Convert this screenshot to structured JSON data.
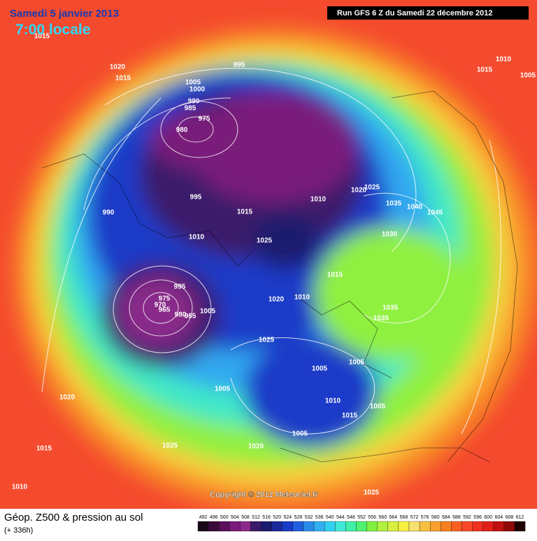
{
  "header": {
    "date": "Samedi 5 janvier 2013",
    "time": "7:00 locale",
    "run": "Run GFS 6 Z du Samedi 22 décembre 2012"
  },
  "copyright": "Copyright © 2012 Meteociel.fr",
  "legend": {
    "title": "Géop. Z500 & pression au sol",
    "lead": "(+ 336h)",
    "scale": [
      492,
      496,
      500,
      504,
      508,
      512,
      516,
      520,
      524,
      528,
      532,
      536,
      540,
      544,
      548,
      552,
      556,
      560,
      564,
      568,
      572,
      576,
      580,
      584,
      588,
      592,
      596,
      600,
      604,
      608,
      612
    ],
    "colors": [
      "#1a081a",
      "#3a0a3a",
      "#5a0f5a",
      "#7a1a7a",
      "#8a2a8a",
      "#3a1a6a",
      "#1a1a6e",
      "#1a2a9a",
      "#1a3ac8",
      "#2060e0",
      "#2a8ae8",
      "#30b0f0",
      "#30d0f0",
      "#40e8d8",
      "#40f0a8",
      "#50f070",
      "#80f040",
      "#b0f040",
      "#d8f040",
      "#f8f040",
      "#f8e070",
      "#f8c040",
      "#f8a030",
      "#f88020",
      "#f86020",
      "#f84828",
      "#f03020",
      "#e02018",
      "#c01010",
      "#900808",
      "#200000"
    ]
  },
  "isobar_labels": [
    1015,
    1020,
    1015,
    995,
    1005,
    1000,
    990,
    985,
    975,
    980,
    1010,
    1015,
    1005,
    995,
    990,
    1015,
    1010,
    1020,
    1025,
    1035,
    1040,
    1045,
    1030,
    1025,
    1010,
    995,
    975,
    970,
    965,
    980,
    985,
    1005,
    1020,
    1010,
    1015,
    1035,
    1035,
    1025,
    1005,
    1005,
    1005,
    1020,
    1010,
    1005,
    1015,
    1005,
    1015,
    1025,
    1020,
    1010,
    1025
  ]
}
